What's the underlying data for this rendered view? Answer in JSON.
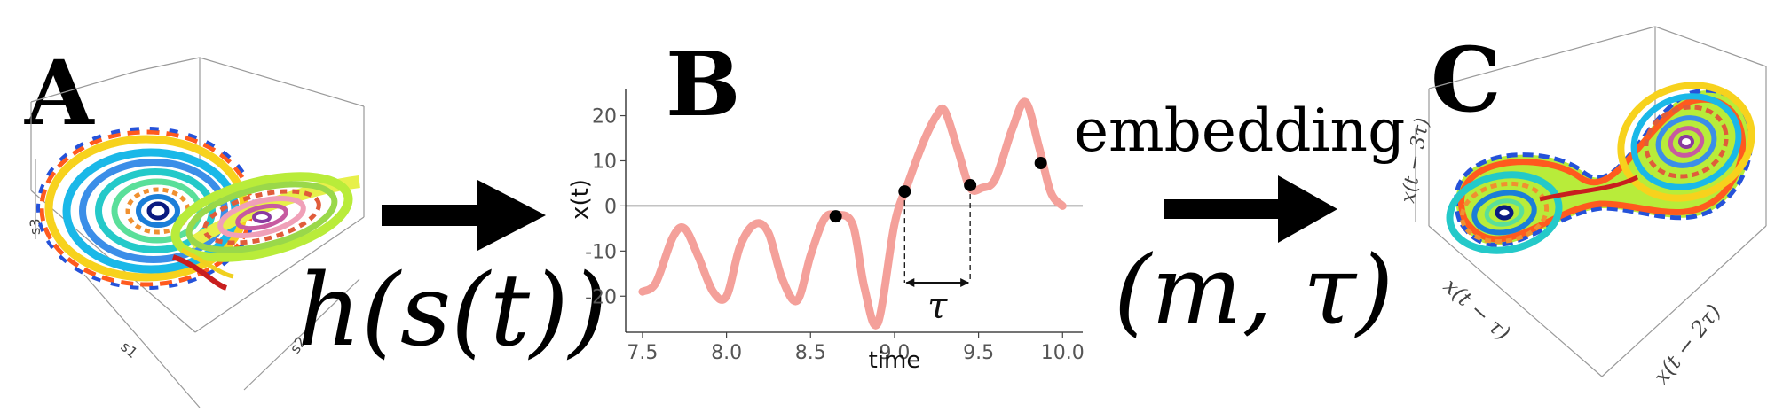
{
  "panels": {
    "a": {
      "letter": "A",
      "axes": {
        "s1": "s1",
        "s2": "s2",
        "s3": "s3"
      }
    },
    "b": {
      "letter": "B"
    },
    "c": {
      "letter": "C",
      "axes": {
        "x_tau": "x(t − τ)",
        "x_2tau": "x(t − 2τ)",
        "x_3tau": "x(t − 3τ)"
      }
    }
  },
  "left_arrow_label": "h(s(t))",
  "embedding_word": "embedding",
  "embedding_params": "(m, τ)",
  "colors": {
    "curve": "#f4a09a",
    "arrow": "#000000",
    "point": "#000000"
  },
  "chart_data": {
    "type": "line",
    "title": "",
    "xlabel": "time",
    "ylabel": "x(t)",
    "xlim": [
      7.4,
      10.12
    ],
    "ylim": [
      -28,
      26
    ],
    "xticks": [
      7.5,
      8.0,
      8.5,
      9.0,
      9.5,
      10.0
    ],
    "xtick_labels": [
      "7.5",
      "8.0",
      "8.5",
      "9.0",
      "9.5",
      "10.0"
    ],
    "yticks": [
      20,
      10,
      0,
      -10,
      -20
    ],
    "ytick_labels": [
      "20",
      "10",
      "0",
      "-10",
      "-20"
    ],
    "grid": false,
    "reference_line_y": 0,
    "series": [
      {
        "x": [
          7.5,
          7.58,
          7.68,
          7.75,
          7.83,
          7.92,
          8.0,
          8.08,
          8.17,
          8.25,
          8.33,
          8.42,
          8.5,
          8.58,
          8.65,
          8.75,
          8.82,
          8.9,
          9.0,
          9.08,
          9.17,
          9.25,
          9.3,
          9.38,
          9.45,
          9.52,
          9.6,
          9.7,
          9.78,
          9.86,
          9.93,
          10.0
        ],
        "y": [
          -19,
          -17,
          -7,
          -5,
          -11,
          -19,
          -20,
          -9,
          -4,
          -6,
          -16,
          -21,
          -11,
          -3,
          -2,
          -4,
          -18,
          -26,
          -4,
          5,
          14,
          20,
          21,
          12,
          4,
          4,
          6,
          17,
          23,
          13,
          3,
          0
        ]
      }
    ],
    "points": [
      {
        "x": 8.65,
        "y": -2.3
      },
      {
        "x": 9.06,
        "y": 3.2
      },
      {
        "x": 9.45,
        "y": 4.6
      },
      {
        "x": 9.87,
        "y": 9.5
      }
    ],
    "tau_annotation": {
      "from_x": 9.06,
      "to_x": 9.45,
      "label": "τ"
    }
  }
}
